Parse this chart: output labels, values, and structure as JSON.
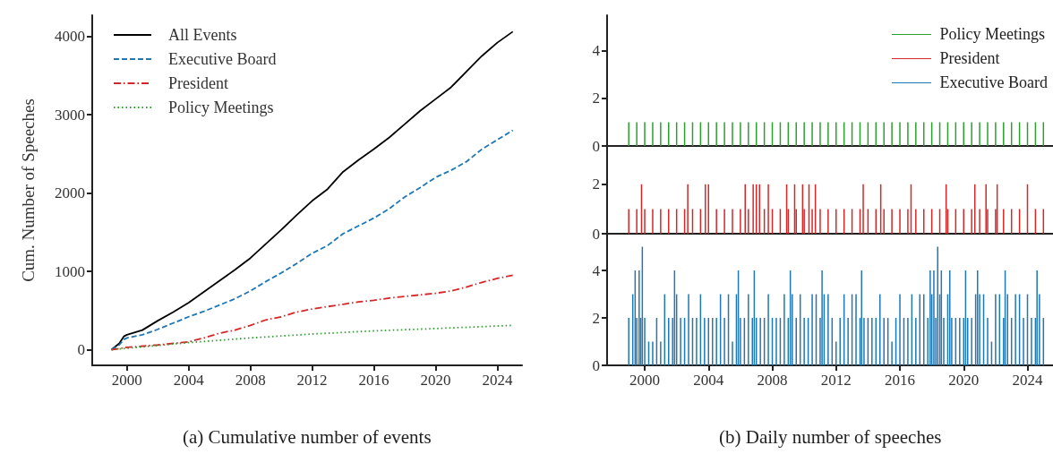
{
  "chart_data": [
    {
      "type": "line",
      "ylabel": "Cum. Number of Speeches",
      "xlim": [
        1997.75,
        2025.6
      ],
      "xticks": [
        2000,
        2004,
        2008,
        2012,
        2016,
        2020,
        2024
      ],
      "ylim": [
        -200,
        4270
      ],
      "yticks": [
        0,
        1000,
        2000,
        3000,
        4000
      ],
      "legend": "top left",
      "annotations": [
        "(a) Cumulative number of events"
      ],
      "series": [
        {
          "name": "All Events",
          "color": "#000000",
          "line_style": "solid",
          "x": [
            1999,
            1999.5,
            1999.8,
            2000,
            2001,
            2002,
            2003,
            2004,
            2005,
            2006,
            2007,
            2008,
            2009,
            2010,
            2011,
            2012,
            2013,
            2014,
            2015,
            2016,
            2017,
            2018,
            2019,
            2020,
            2021,
            2022,
            2023,
            2024,
            2025
          ],
          "values": [
            0,
            80,
            170,
            190,
            250,
            370,
            480,
            600,
            740,
            880,
            1020,
            1170,
            1350,
            1530,
            1720,
            1900,
            2050,
            2270,
            2420,
            2560,
            2710,
            2880,
            3050,
            3200,
            3350,
            3550,
            3750,
            3920,
            4060
          ]
        },
        {
          "name": "Executive Board",
          "color": "#1f77b4",
          "line_style": "dashed",
          "x": [
            1999,
            1999.5,
            1999.8,
            2000,
            2001,
            2002,
            2003,
            2004,
            2005,
            2006,
            2007,
            2008,
            2009,
            2010,
            2011,
            2012,
            2013,
            2014,
            2015,
            2016,
            2017,
            2018,
            2019,
            2020,
            2021,
            2022,
            2023,
            2024,
            2025
          ],
          "values": [
            0,
            60,
            130,
            150,
            190,
            260,
            340,
            420,
            490,
            570,
            650,
            750,
            870,
            980,
            1100,
            1230,
            1330,
            1480,
            1580,
            1680,
            1800,
            1950,
            2070,
            2200,
            2290,
            2400,
            2560,
            2680,
            2800
          ]
        },
        {
          "name": "President",
          "color": "#d62728",
          "line_style": "dashdot",
          "x": [
            1999,
            2000,
            2002,
            2004,
            2005,
            2006,
            2007,
            2008,
            2009,
            2010,
            2011,
            2012,
            2013,
            2014,
            2015,
            2016,
            2017,
            2018,
            2019,
            2020,
            2021,
            2022,
            2023,
            2024,
            2025
          ],
          "values": [
            0,
            30,
            60,
            100,
            150,
            210,
            250,
            310,
            380,
            420,
            480,
            520,
            550,
            580,
            610,
            630,
            660,
            680,
            700,
            720,
            750,
            800,
            860,
            910,
            950
          ]
        },
        {
          "name": "Policy Meetings",
          "color": "#2ca02c",
          "line_style": "dotted",
          "x": [
            1999,
            2004,
            2008,
            2012,
            2016,
            2020,
            2025
          ],
          "values": [
            0,
            90,
            150,
            200,
            240,
            270,
            310
          ]
        }
      ]
    },
    {
      "type": "bar",
      "xlim": [
        1997.64,
        2025.6
      ],
      "ylim": [
        0,
        5.5
      ],
      "yticks": [
        0,
        2,
        4
      ],
      "tick_labels": "y",
      "legend": "top right",
      "annotations": [
        "(b) Daily number of speeches"
      ],
      "series": [
        {
          "name": "Policy Meetings",
          "color": "#2ca02c",
          "x": [
            1999,
            1999.5,
            2000,
            2000.5,
            2001,
            2001.5,
            2002,
            2002.5,
            2003,
            2003.5,
            2004,
            2004.5,
            2005,
            2005.5,
            2006,
            2006.5,
            2007,
            2007.5,
            2008,
            2008.5,
            2009,
            2009.5,
            2010,
            2010.5,
            2011,
            2011.5,
            2012,
            2012.5,
            2013,
            2013.5,
            2014,
            2014.5,
            2015,
            2015.5,
            2016,
            2016.5,
            2017,
            2017.5,
            2018,
            2018.5,
            2019,
            2019.5,
            2020,
            2020.5,
            2021,
            2021.5,
            2022,
            2022.5,
            2023,
            2023.5,
            2024,
            2024.5,
            2025
          ],
          "values": [
            1,
            1,
            1,
            1,
            1,
            1,
            1,
            1,
            1,
            1,
            1,
            1,
            1,
            1,
            1,
            1,
            1,
            1,
            1,
            1,
            1,
            1,
            1,
            1,
            1,
            1,
            1,
            1,
            1,
            1,
            1,
            1,
            1,
            1,
            1,
            1,
            1,
            1,
            1,
            1,
            1,
            1,
            1,
            1,
            1,
            1,
            1,
            1,
            1,
            1,
            1,
            1,
            1
          ]
        }
      ]
    },
    {
      "type": "bar",
      "xlim": [
        1997.64,
        2025.6
      ],
      "ylim": [
        0,
        3.55
      ],
      "yticks": [
        0,
        2
      ],
      "tick_labels": "y",
      "series": [
        {
          "name": "President",
          "color": "#d62728",
          "x": [
            1999,
            1999.5,
            1999.8,
            2000,
            2000.5,
            2001,
            2001.5,
            2002,
            2002.5,
            2002.7,
            2003,
            2003.5,
            2003.8,
            2004,
            2004.5,
            2005,
            2005.5,
            2006,
            2006.3,
            2006.5,
            2006.8,
            2007,
            2007.2,
            2007.5,
            2007.75,
            2008,
            2008.5,
            2008.9,
            2009,
            2009.4,
            2009.5,
            2009.9,
            2010,
            2010.3,
            2010.5,
            2010.7,
            2011,
            2011.5,
            2012,
            2012.5,
            2013,
            2013.5,
            2013.7,
            2014,
            2014.5,
            2014.8,
            2015,
            2015.5,
            2016,
            2016.5,
            2016.7,
            2017,
            2017.5,
            2018,
            2018.5,
            2018.9,
            2019,
            2019.5,
            2020,
            2020.5,
            2020.7,
            2021,
            2021.4,
            2021.5,
            2022,
            2022.1,
            2022.5,
            2023,
            2023.5,
            2024,
            2024.5,
            2025
          ],
          "values": [
            1,
            1,
            2,
            1,
            1,
            1,
            1,
            1,
            1,
            2,
            1,
            1,
            2,
            2,
            1,
            1,
            1,
            1,
            2,
            1,
            2,
            2,
            2,
            1,
            2,
            1,
            1,
            2,
            1,
            2,
            1,
            2,
            1,
            2,
            1,
            2,
            1,
            1,
            1,
            1,
            1,
            1,
            2,
            1,
            1,
            2,
            1,
            1,
            1,
            1,
            2,
            1,
            1,
            1,
            1,
            2,
            1,
            1,
            1,
            1,
            2,
            1,
            2,
            1,
            1,
            2,
            1,
            1,
            1,
            2,
            1,
            1
          ]
        }
      ]
    },
    {
      "type": "bar",
      "xlim": [
        1997.64,
        2025.6
      ],
      "xticks": [
        2000,
        2004,
        2008,
        2012,
        2016,
        2020,
        2024
      ],
      "ylim": [
        0,
        5.55
      ],
      "yticks": [
        0,
        2,
        4
      ],
      "series": [
        {
          "name": "Executive Board",
          "color": "#1f77b4",
          "x": [
            1999,
            1999.25,
            1999.4,
            1999.5,
            1999.65,
            1999.75,
            1999.85,
            2000,
            2000.25,
            2000.5,
            2000.75,
            2001,
            2001.25,
            2001.5,
            2001.75,
            2001.87,
            2002,
            2002.25,
            2002.5,
            2002.75,
            2003,
            2003.25,
            2003.5,
            2003.75,
            2004,
            2004.25,
            2004.5,
            2004.75,
            2005,
            2005.25,
            2005.5,
            2005.75,
            2005.87,
            2006,
            2006.25,
            2006.5,
            2006.75,
            2006.87,
            2007,
            2007.25,
            2007.5,
            2007.75,
            2008,
            2008.25,
            2008.5,
            2008.75,
            2009,
            2009.13,
            2009.25,
            2009.5,
            2009.75,
            2010,
            2010.25,
            2010.5,
            2010.75,
            2011,
            2011.12,
            2011.25,
            2011.5,
            2011.75,
            2012,
            2012.25,
            2012.5,
            2012.75,
            2013,
            2013.25,
            2013.5,
            2013.6,
            2013.75,
            2014,
            2014.25,
            2014.5,
            2014.75,
            2015,
            2015.25,
            2015.5,
            2015.75,
            2016,
            2016.25,
            2016.5,
            2016.75,
            2017,
            2017.25,
            2017.5,
            2017.75,
            2017.9,
            2018,
            2018.13,
            2018.25,
            2018.37,
            2018.5,
            2018.6,
            2018.75,
            2019,
            2019.13,
            2019.25,
            2019.5,
            2019.75,
            2020,
            2020.12,
            2020.25,
            2020.5,
            2020.75,
            2020.87,
            2021,
            2021.25,
            2021.5,
            2021.75,
            2022,
            2022.25,
            2022.5,
            2022.6,
            2022.75,
            2023,
            2023.25,
            2023.5,
            2023.75,
            2024,
            2024.25,
            2024.5,
            2024.6,
            2024.75,
            2025
          ],
          "values": [
            2,
            3,
            4,
            2,
            4,
            2,
            5,
            2,
            1,
            1,
            2,
            1,
            3,
            2,
            2,
            4,
            3,
            2,
            2,
            3,
            2,
            2,
            3,
            2,
            2,
            2,
            2,
            3,
            2,
            3,
            1,
            3,
            4,
            2,
            2,
            3,
            2,
            4,
            2,
            2,
            2,
            3,
            2,
            2,
            2,
            3,
            2,
            4,
            3,
            2,
            3,
            2,
            2,
            3,
            3,
            2,
            4,
            3,
            3,
            2,
            1,
            2,
            3,
            2,
            3,
            3,
            2,
            4,
            2,
            2,
            2,
            2,
            3,
            2,
            2,
            1,
            2,
            3,
            2,
            2,
            3,
            2,
            3,
            3,
            2,
            4,
            3,
            4,
            2,
            5,
            3,
            4,
            2,
            3,
            4,
            2,
            2,
            2,
            2,
            4,
            2,
            2,
            3,
            4,
            3,
            3,
            2,
            1,
            3,
            3,
            2,
            4,
            3,
            2,
            3,
            3,
            2,
            3,
            2,
            2,
            4,
            3,
            2
          ]
        }
      ]
    }
  ]
}
